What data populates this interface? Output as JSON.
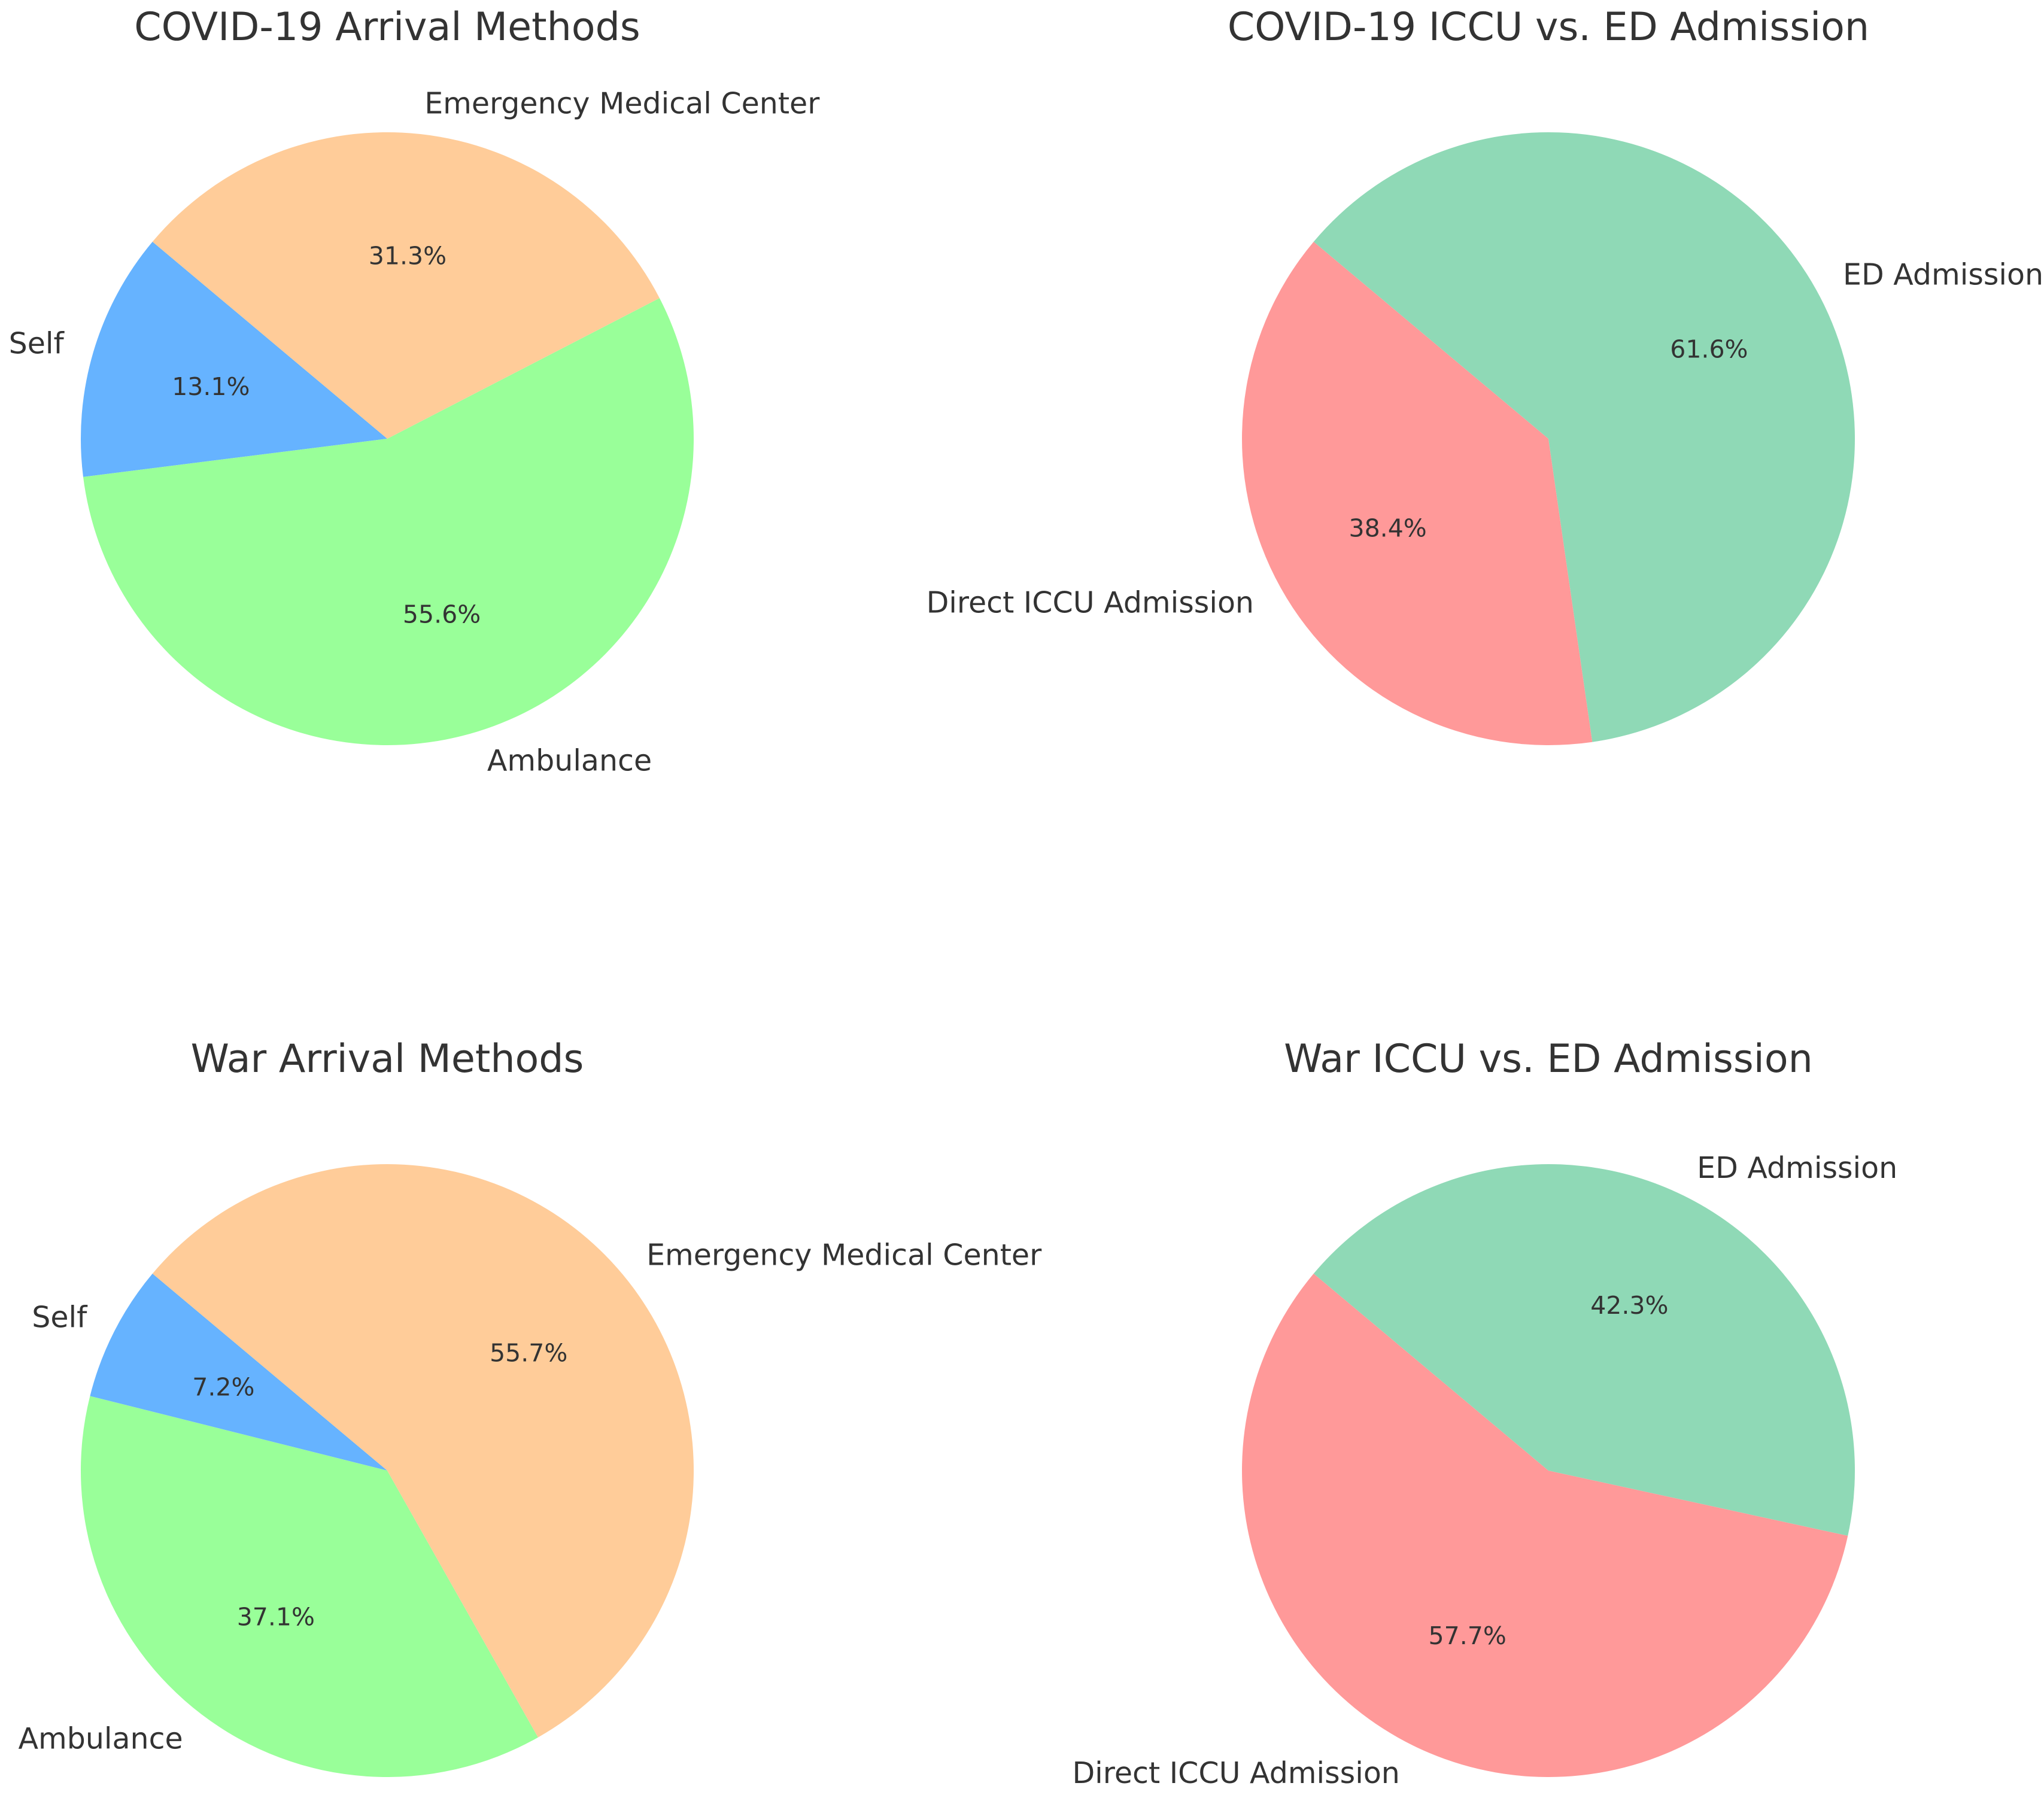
{
  "chart_data": [
    {
      "type": "pie",
      "title": "COVID-19 Arrival Methods",
      "start_angle_deg": 140,
      "slices": [
        {
          "label": "Self",
          "value": 13.1,
          "pct_label": "13.1%",
          "color": "#66b3ff"
        },
        {
          "label": "Ambulance",
          "value": 55.6,
          "pct_label": "55.6%",
          "color": "#99ff99"
        },
        {
          "label": "Emergency Medical Center",
          "value": 31.3,
          "pct_label": "31.3%",
          "color": "#ffcc99"
        }
      ]
    },
    {
      "type": "pie",
      "title": "COVID-19 ICCU vs. ED Admission",
      "start_angle_deg": 140,
      "slices": [
        {
          "label": "Direct ICCU Admission",
          "value": 38.4,
          "pct_label": "38.4%",
          "color": "#ff9999"
        },
        {
          "label": "ED Admission",
          "value": 61.6,
          "pct_label": "61.6%",
          "color": "#8fd9b6"
        }
      ]
    },
    {
      "type": "pie",
      "title": "War Arrival Methods",
      "start_angle_deg": 140,
      "slices": [
        {
          "label": "Self",
          "value": 7.2,
          "pct_label": "7.2%",
          "color": "#66b3ff"
        },
        {
          "label": "Ambulance",
          "value": 37.1,
          "pct_label": "37.1%",
          "color": "#99ff99"
        },
        {
          "label": "Emergency Medical Center",
          "value": 55.7,
          "pct_label": "55.7%",
          "color": "#ffcc99"
        }
      ]
    },
    {
      "type": "pie",
      "title": "War ICCU vs. ED Admission",
      "start_angle_deg": 140,
      "slices": [
        {
          "label": "Direct ICCU Admission",
          "value": 57.7,
          "pct_label": "57.7%",
          "color": "#ff9999"
        },
        {
          "label": "ED Admission",
          "value": 42.3,
          "pct_label": "42.3%",
          "color": "#8fd9b6"
        }
      ]
    }
  ]
}
